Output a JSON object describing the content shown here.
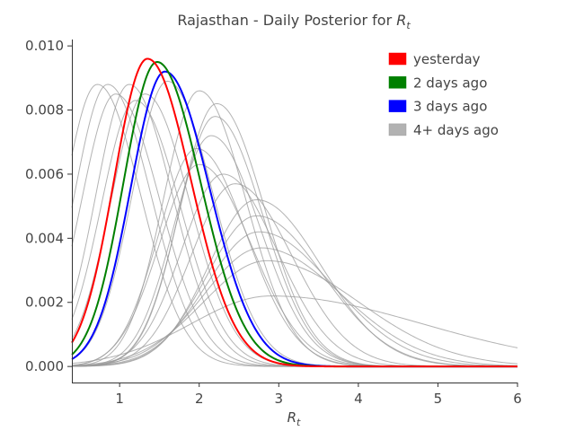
{
  "chart_data": {
    "type": "line",
    "title_prefix": "Rajasthan - Daily Posterior for ",
    "title_var": "R",
    "title_sub": "t",
    "xlabel_var": "R",
    "xlabel_sub": "t",
    "ylabel": "",
    "xlim": [
      0.4,
      6.0
    ],
    "ylim": [
      -0.0005,
      0.0102
    ],
    "xticks": [
      1,
      2,
      3,
      4,
      5,
      6
    ],
    "xtick_labels": [
      "1",
      "2",
      "3",
      "4",
      "5",
      "6"
    ],
    "yticks": [
      0.0,
      0.002,
      0.004,
      0.006,
      0.008,
      0.01
    ],
    "ytick_labels": [
      "0.000",
      "0.002",
      "0.004",
      "0.006",
      "0.008",
      "0.010"
    ],
    "grid": false,
    "legend_position": "top-right",
    "legend": [
      {
        "label": "yesterday",
        "color": "#ff0000"
      },
      {
        "label": "2 days ago",
        "color": "#008000"
      },
      {
        "label": "3 days ago",
        "color": "#0000ff"
      },
      {
        "label": "4+ days ago",
        "color": "#b2b2b2"
      }
    ],
    "series": [
      {
        "group": "yesterday",
        "color": "#ff0000",
        "peak_x": 1.35,
        "peak_y": 0.0096,
        "sigma": 0.42,
        "skew": 1.3
      },
      {
        "group": "2 days ago",
        "color": "#008000",
        "peak_x": 1.47,
        "peak_y": 0.0095,
        "sigma": 0.42,
        "skew": 1.3
      },
      {
        "group": "3 days ago",
        "color": "#0000ff",
        "peak_x": 1.57,
        "peak_y": 0.0092,
        "sigma": 0.43,
        "skew": 1.3
      },
      {
        "group": "4+ days ago",
        "color": "#999999",
        "peak_x": 0.72,
        "peak_y": 0.0088,
        "sigma": 0.42,
        "skew": 1.3
      },
      {
        "group": "4+ days ago",
        "color": "#999999",
        "peak_x": 0.85,
        "peak_y": 0.0088,
        "sigma": 0.42,
        "skew": 1.3
      },
      {
        "group": "4+ days ago",
        "color": "#999999",
        "peak_x": 0.95,
        "peak_y": 0.0085,
        "sigma": 0.43,
        "skew": 1.3
      },
      {
        "group": "4+ days ago",
        "color": "#999999",
        "peak_x": 1.12,
        "peak_y": 0.0088,
        "sigma": 0.42,
        "skew": 1.3
      },
      {
        "group": "4+ days ago",
        "color": "#999999",
        "peak_x": 1.2,
        "peak_y": 0.0083,
        "sigma": 0.43,
        "skew": 1.3
      },
      {
        "group": "4+ days ago",
        "color": "#999999",
        "peak_x": 1.32,
        "peak_y": 0.0085,
        "sigma": 0.43,
        "skew": 1.3
      },
      {
        "group": "4+ days ago",
        "color": "#999999",
        "peak_x": 1.6,
        "peak_y": 0.0089,
        "sigma": 0.44,
        "skew": 1.3
      },
      {
        "group": "4+ days ago",
        "color": "#999999",
        "peak_x": 2.0,
        "peak_y": 0.0086,
        "sigma": 0.45,
        "skew": 1.3
      },
      {
        "group": "4+ days ago",
        "color": "#999999",
        "peak_x": 2.22,
        "peak_y": 0.0082,
        "sigma": 0.46,
        "skew": 1.3
      },
      {
        "group": "4+ days ago",
        "color": "#999999",
        "peak_x": 2.2,
        "peak_y": 0.0078,
        "sigma": 0.46,
        "skew": 1.3
      },
      {
        "group": "4+ days ago",
        "color": "#999999",
        "peak_x": 2.15,
        "peak_y": 0.0072,
        "sigma": 0.47,
        "skew": 1.3
      },
      {
        "group": "4+ days ago",
        "color": "#999999",
        "peak_x": 1.97,
        "peak_y": 0.0068,
        "sigma": 0.48,
        "skew": 1.3
      },
      {
        "group": "4+ days ago",
        "color": "#999999",
        "peak_x": 2.0,
        "peak_y": 0.0063,
        "sigma": 0.5,
        "skew": 1.3
      },
      {
        "group": "4+ days ago",
        "color": "#999999",
        "peak_x": 2.3,
        "peak_y": 0.006,
        "sigma": 0.52,
        "skew": 1.3
      },
      {
        "group": "4+ days ago",
        "color": "#999999",
        "peak_x": 2.45,
        "peak_y": 0.0057,
        "sigma": 0.55,
        "skew": 1.3
      },
      {
        "group": "4+ days ago",
        "color": "#999999",
        "peak_x": 2.72,
        "peak_y": 0.0052,
        "sigma": 0.6,
        "skew": 1.35
      },
      {
        "group": "4+ days ago",
        "color": "#999999",
        "peak_x": 2.72,
        "peak_y": 0.0047,
        "sigma": 0.62,
        "skew": 1.35
      },
      {
        "group": "4+ days ago",
        "color": "#999999",
        "peak_x": 2.75,
        "peak_y": 0.0042,
        "sigma": 0.66,
        "skew": 1.4
      },
      {
        "group": "4+ days ago",
        "color": "#999999",
        "peak_x": 2.78,
        "peak_y": 0.0037,
        "sigma": 0.72,
        "skew": 1.4
      },
      {
        "group": "4+ days ago",
        "color": "#999999",
        "peak_x": 2.85,
        "peak_y": 0.0033,
        "sigma": 0.8,
        "skew": 1.45
      },
      {
        "group": "4+ days ago",
        "color": "#999999",
        "peak_x": 2.9,
        "peak_y": 0.0022,
        "sigma": 1.0,
        "skew": 1.9
      }
    ]
  }
}
